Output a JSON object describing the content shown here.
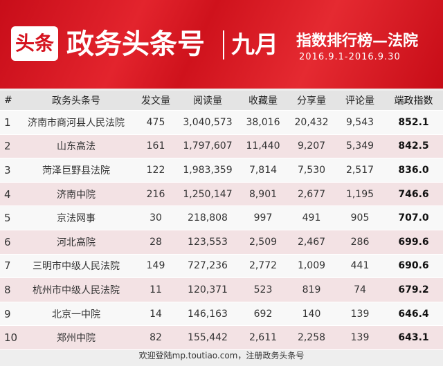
{
  "header": {
    "logo": "头条",
    "title": "政务头条号",
    "month": "九月",
    "subtitle": "指数排行榜—法院",
    "dates": "2016.9.1-2016.9.30"
  },
  "table": {
    "columns": [
      "#",
      "政务头条号",
      "发文量",
      "阅读量",
      "收藏量",
      "分享量",
      "评论量",
      "端政指数"
    ],
    "rows": [
      [
        "1",
        "济南市商河县人民法院",
        "475",
        "3,040,573",
        "38,016",
        "20,432",
        "9,543",
        "852.1"
      ],
      [
        "2",
        "山东高法",
        "161",
        "1,797,607",
        "11,440",
        "9,207",
        "5,349",
        "842.5"
      ],
      [
        "3",
        "菏泽巨野县法院",
        "122",
        "1,983,359",
        "7,814",
        "7,530",
        "2,517",
        "836.0"
      ],
      [
        "4",
        "济南中院",
        "216",
        "1,250,147",
        "8,901",
        "2,677",
        "1,195",
        "746.6"
      ],
      [
        "5",
        "京法网事",
        "30",
        "218,808",
        "997",
        "491",
        "905",
        "707.0"
      ],
      [
        "6",
        "河北高院",
        "28",
        "123,553",
        "2,509",
        "2,467",
        "286",
        "699.6"
      ],
      [
        "7",
        "三明市中级人民法院",
        "149",
        "727,236",
        "2,772",
        "1,009",
        "441",
        "690.6"
      ],
      [
        "8",
        "杭州市中级人民法院",
        "11",
        "120,371",
        "523",
        "819",
        "74",
        "679.2"
      ],
      [
        "9",
        "北京一中院",
        "14",
        "146,163",
        "692",
        "140",
        "139",
        "646.4"
      ],
      [
        "10",
        "郑州中院",
        "82",
        "155,442",
        "2,611",
        "2,258",
        "139",
        "643.1"
      ]
    ]
  },
  "footer": "欢迎登陆mp.toutiao.com，注册政务头条号"
}
